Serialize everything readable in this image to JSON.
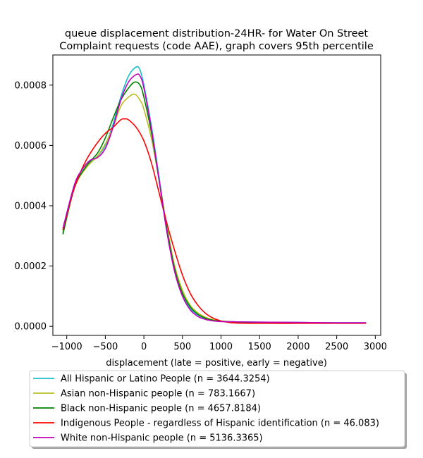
{
  "chart_data": {
    "type": "line",
    "title": "queue displacement distribution-24HR-  for Water On Street\nComplaint  requests (code AAE), graph covers 95th percentile",
    "xlabel": "displacement (late = positive, early = negative)",
    "ylabel": "",
    "xlim": [
      -1180,
      3070
    ],
    "ylim": [
      -3e-05,
      0.0009
    ],
    "x_ticks": [
      -1000,
      -500,
      0,
      500,
      1000,
      1500,
      2000,
      2500,
      3000
    ],
    "x_tick_labels": [
      "−1000",
      "−500",
      "0",
      "500",
      "1000",
      "1500",
      "2000",
      "2500",
      "3000"
    ],
    "y_ticks": [
      0,
      0.0002,
      0.0004,
      0.0006,
      0.0008
    ],
    "y_tick_labels": [
      "0.0000",
      "0.0002",
      "0.0004",
      "0.0006",
      "0.0008"
    ],
    "grid": false,
    "legend_position": "below-plot",
    "series": [
      {
        "name": "All Hispanic or Latino People (n = 3644.3254)",
        "color": "#17becf",
        "points": [
          [
            -1050,
            0.00031
          ],
          [
            -900,
            0.00046
          ],
          [
            -750,
            0.00053
          ],
          [
            -600,
            0.000565
          ],
          [
            -500,
            0.0006
          ],
          [
            -400,
            0.00067
          ],
          [
            -300,
            0.00076
          ],
          [
            -200,
            0.00083
          ],
          [
            -100,
            0.00086
          ],
          [
            -50,
            0.00085
          ],
          [
            0,
            0.0008
          ],
          [
            100,
            0.00066
          ],
          [
            200,
            0.00049
          ],
          [
            300,
            0.00032
          ],
          [
            400,
            0.00019
          ],
          [
            500,
            0.000105
          ],
          [
            600,
            6e-05
          ],
          [
            700,
            3.8e-05
          ],
          [
            800,
            2.6e-05
          ],
          [
            900,
            2e-05
          ],
          [
            1000,
            1.7e-05
          ],
          [
            1200,
            1.5e-05
          ],
          [
            1500,
            1.4e-05
          ],
          [
            2000,
            1.3e-05
          ],
          [
            2500,
            1.2e-05
          ],
          [
            2880,
            1.2e-05
          ]
        ]
      },
      {
        "name": "Asian non-Hispanic people (n = 783.1667)",
        "color": "#bcbd22",
        "points": [
          [
            -1050,
            0.000315
          ],
          [
            -900,
            0.00046
          ],
          [
            -750,
            0.000525
          ],
          [
            -600,
            0.000565
          ],
          [
            -500,
            0.000605
          ],
          [
            -400,
            0.00066
          ],
          [
            -300,
            0.00073
          ],
          [
            -200,
            0.00076
          ],
          [
            -120,
            0.00077
          ],
          [
            -50,
            0.00075
          ],
          [
            0,
            0.00072
          ],
          [
            100,
            0.00062
          ],
          [
            200,
            0.00048
          ],
          [
            300,
            0.00033
          ],
          [
            400,
            0.0002
          ],
          [
            500,
            0.00012
          ],
          [
            600,
            7e-05
          ],
          [
            700,
            4.5e-05
          ],
          [
            800,
            3e-05
          ],
          [
            900,
            2.2e-05
          ],
          [
            1000,
            1.8e-05
          ],
          [
            1200,
            1.5e-05
          ],
          [
            1500,
            1.3e-05
          ],
          [
            2000,
            1.2e-05
          ],
          [
            2500,
            1.1e-05
          ],
          [
            2880,
            1.1e-05
          ]
        ]
      },
      {
        "name": "Black non-Hispanic people (n = 4657.8184)",
        "color": "#008000",
        "points": [
          [
            -1050,
            0.000305
          ],
          [
            -900,
            0.00046
          ],
          [
            -750,
            0.00053
          ],
          [
            -600,
            0.000575
          ],
          [
            -500,
            0.000625
          ],
          [
            -400,
            0.00069
          ],
          [
            -300,
            0.00075
          ],
          [
            -200,
            0.00079
          ],
          [
            -120,
            0.00081
          ],
          [
            -50,
            0.0008
          ],
          [
            0,
            0.00076
          ],
          [
            100,
            0.00064
          ],
          [
            200,
            0.00048
          ],
          [
            300,
            0.00032
          ],
          [
            400,
            0.00019
          ],
          [
            500,
            0.00011
          ],
          [
            600,
            6.5e-05
          ],
          [
            700,
            4e-05
          ],
          [
            800,
            2.7e-05
          ],
          [
            900,
            2e-05
          ],
          [
            1000,
            1.7e-05
          ],
          [
            1200,
            1.4e-05
          ],
          [
            1500,
            1.3e-05
          ],
          [
            2000,
            1.2e-05
          ],
          [
            2500,
            1.1e-05
          ],
          [
            2880,
            1.1e-05
          ]
        ]
      },
      {
        "name": "Indigenous People - regardless of Hispanic identification (n = 46.083)",
        "color": "#ff0000",
        "points": [
          [
            -1050,
            0.00032
          ],
          [
            -900,
            0.00046
          ],
          [
            -750,
            0.00055
          ],
          [
            -600,
            0.00061
          ],
          [
            -500,
            0.00064
          ],
          [
            -400,
            0.00066
          ],
          [
            -300,
            0.000685
          ],
          [
            -250,
            0.000688
          ],
          [
            -200,
            0.000685
          ],
          [
            -100,
            0.00066
          ],
          [
            0,
            0.000615
          ],
          [
            100,
            0.00054
          ],
          [
            200,
            0.00044
          ],
          [
            300,
            0.00034
          ],
          [
            400,
            0.00025
          ],
          [
            500,
            0.00017
          ],
          [
            600,
            0.00011
          ],
          [
            700,
            7e-05
          ],
          [
            800,
            4.3e-05
          ],
          [
            900,
            2.7e-05
          ],
          [
            1000,
            1.8e-05
          ],
          [
            1100,
            1.3e-05
          ],
          [
            1200,
            1.1e-05
          ],
          [
            1500,
            1e-05
          ],
          [
            2000,
            1e-05
          ],
          [
            2500,
            1e-05
          ],
          [
            2880,
            1e-05
          ]
        ]
      },
      {
        "name": "White non-Hispanic people (n = 5136.3365)",
        "color": "#bf00bf",
        "points": [
          [
            -1050,
            0.000325
          ],
          [
            -900,
            0.00047
          ],
          [
            -800,
            0.00052
          ],
          [
            -700,
            0.00055
          ],
          [
            -600,
            0.00056
          ],
          [
            -500,
            0.00059
          ],
          [
            -400,
            0.00066
          ],
          [
            -300,
            0.00075
          ],
          [
            -200,
            0.00081
          ],
          [
            -100,
            0.000835
          ],
          [
            -50,
            0.00083
          ],
          [
            0,
            0.00079
          ],
          [
            100,
            0.00065
          ],
          [
            200,
            0.00048
          ],
          [
            300,
            0.00031
          ],
          [
            400,
            0.00018
          ],
          [
            500,
            0.0001
          ],
          [
            600,
            5.5e-05
          ],
          [
            700,
            3.3e-05
          ],
          [
            800,
            2.3e-05
          ],
          [
            900,
            1.8e-05
          ],
          [
            1000,
            1.6e-05
          ],
          [
            1200,
            1.5e-05
          ],
          [
            1500,
            1.4e-05
          ],
          [
            2000,
            1.3e-05
          ],
          [
            2500,
            1.2e-05
          ],
          [
            2880,
            1.2e-05
          ]
        ]
      }
    ]
  }
}
